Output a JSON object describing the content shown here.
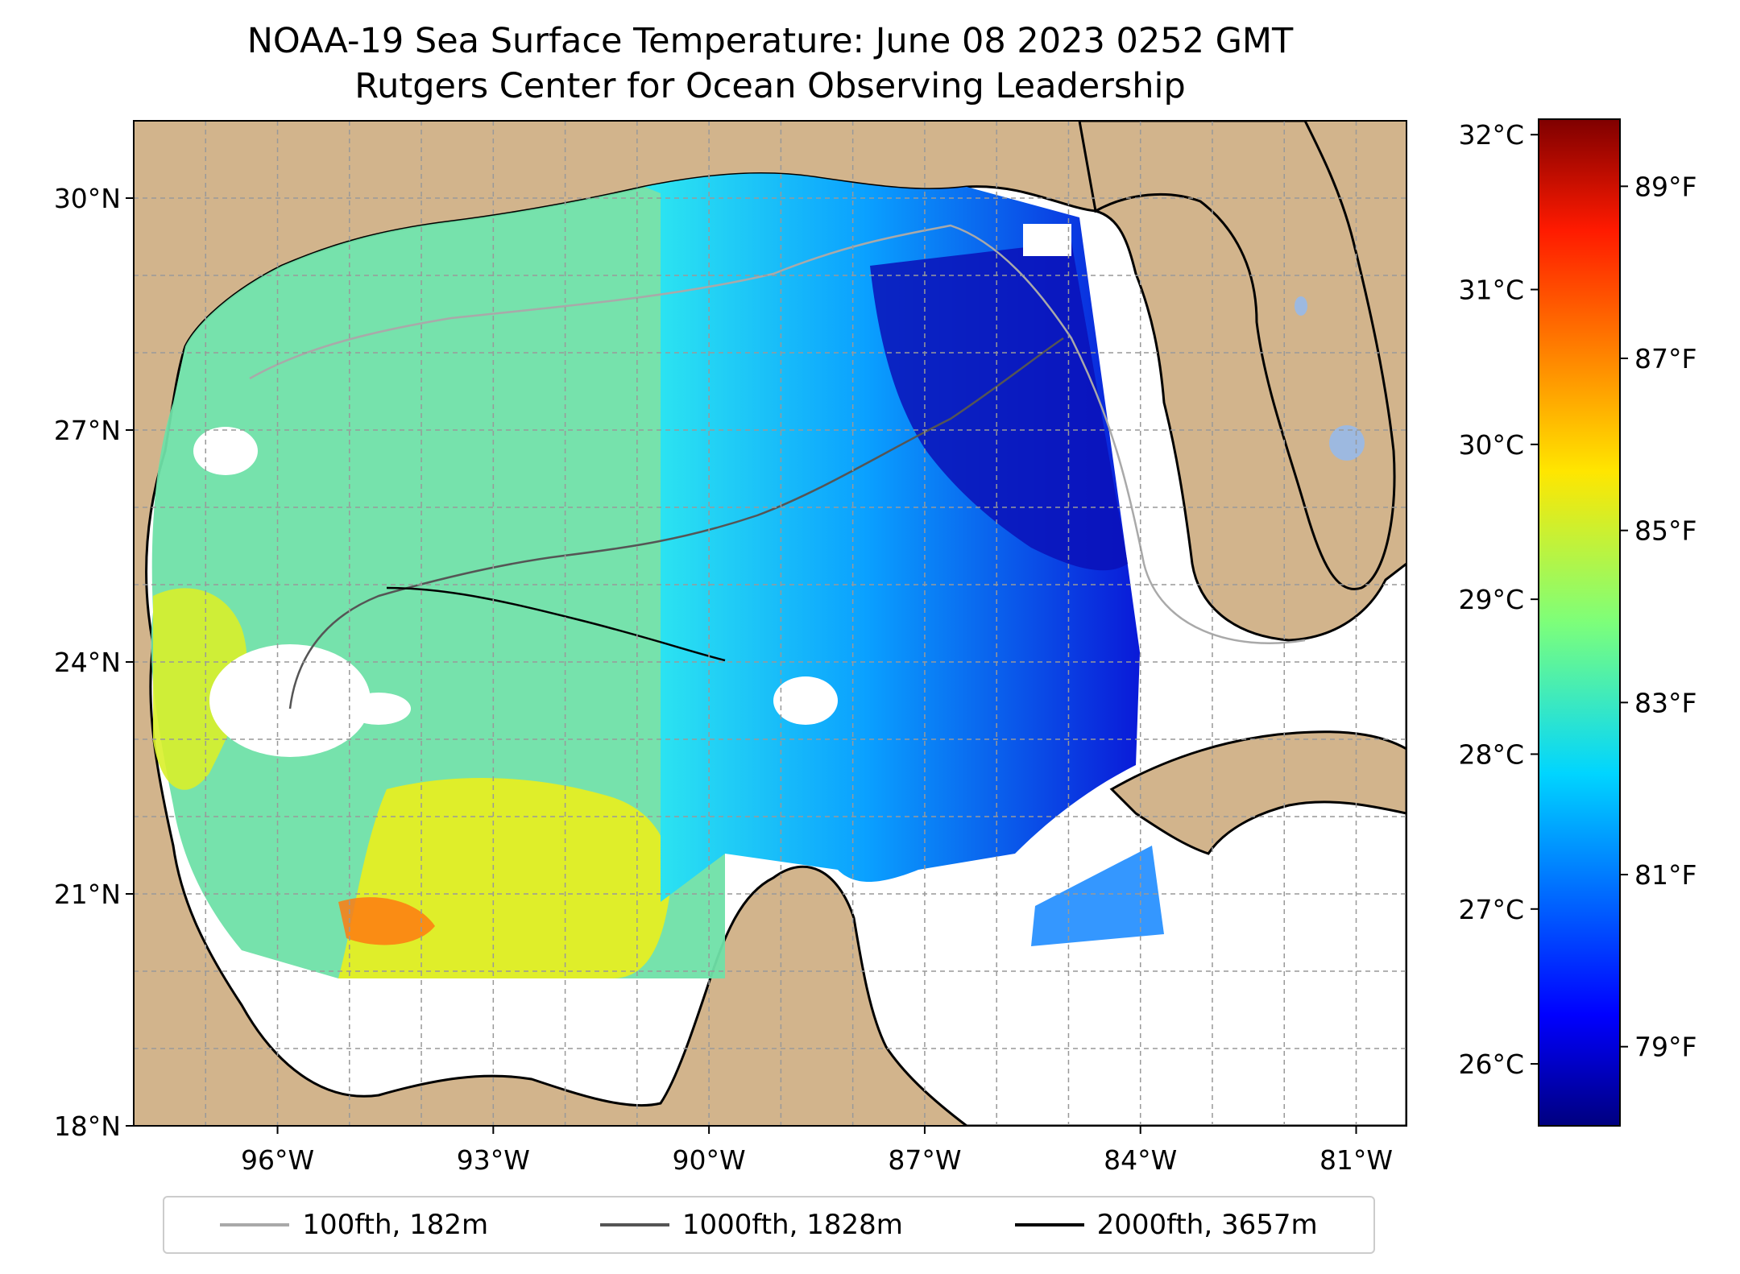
{
  "title": {
    "line1": "NOAA-19 Sea Surface Temperature: June 08 2023 0252 GMT",
    "line2": "Rutgers Center for Ocean Observing Leadership"
  },
  "map": {
    "region": "Gulf of Mexico",
    "lon_range": [
      -98,
      -80.3
    ],
    "lat_range": [
      18,
      31
    ],
    "land_color": "#d2b48c",
    "lake_color": "#9db9e0",
    "no_data_color": "#ffffff",
    "gridlines": true,
    "lat_ticks": [
      {
        "value": 30,
        "label": "30°N"
      },
      {
        "value": 27,
        "label": "27°N"
      },
      {
        "value": 24,
        "label": "24°N"
      },
      {
        "value": 21,
        "label": "21°N"
      },
      {
        "value": 18,
        "label": "18°N"
      }
    ],
    "lon_ticks": [
      {
        "value": -96,
        "label": "96°W"
      },
      {
        "value": -93,
        "label": "93°W"
      },
      {
        "value": -90,
        "label": "90°W"
      },
      {
        "value": -87,
        "label": "87°W"
      },
      {
        "value": -84,
        "label": "84°W"
      },
      {
        "value": -81,
        "label": "81°W"
      }
    ]
  },
  "colorbar": {
    "colormap": "jet",
    "range_c": [
      25.6,
      32.1
    ],
    "left_ticks": [
      {
        "value": 32,
        "label": "32°C"
      },
      {
        "value": 31,
        "label": "31°C"
      },
      {
        "value": 30,
        "label": "30°C"
      },
      {
        "value": 29,
        "label": "29°C"
      },
      {
        "value": 28,
        "label": "28°C"
      },
      {
        "value": 27,
        "label": "27°C"
      },
      {
        "value": 26,
        "label": "26°C"
      }
    ],
    "right_ticks": [
      {
        "value": 89,
        "label": "89°F"
      },
      {
        "value": 87,
        "label": "87°F"
      },
      {
        "value": 85,
        "label": "85°F"
      },
      {
        "value": 83,
        "label": "83°F"
      },
      {
        "value": 81,
        "label": "81°F"
      },
      {
        "value": 79,
        "label": "79°F"
      }
    ]
  },
  "legend": {
    "items": [
      {
        "label": "100fth, 182m",
        "color": "#a9a9a9"
      },
      {
        "label": "1000fth, 1828m",
        "color": "#555555"
      },
      {
        "label": "2000fth, 3657m",
        "color": "#000000"
      }
    ]
  }
}
